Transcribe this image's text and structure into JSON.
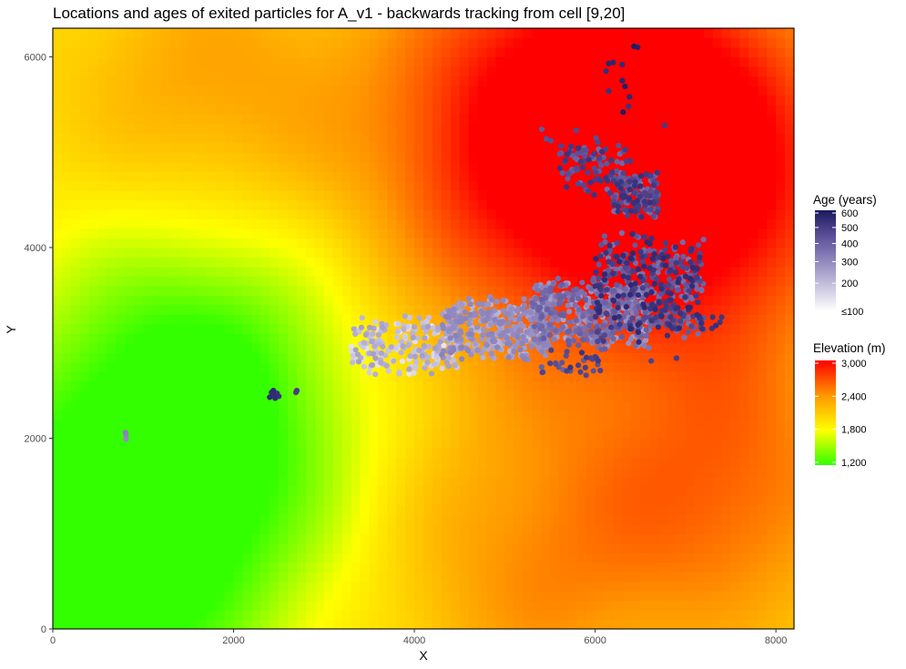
{
  "chart_data": {
    "type": "heatmap",
    "title": "Locations and ages of exited particles for A_v1 - backwards tracking from cell [9,20]",
    "xlabel": "X",
    "ylabel": "Y",
    "xlim": [
      0,
      8200
    ],
    "ylim": [
      0,
      6300
    ],
    "x_ticks": [
      0,
      2000,
      4000,
      6000,
      8000
    ],
    "x_tick_labels": [
      "0",
      "2000",
      "4000",
      "6000",
      "8000"
    ],
    "y_ticks": [
      0,
      2000,
      4000,
      6000
    ],
    "y_tick_labels": [
      "0",
      "2000",
      "4000",
      "6000"
    ],
    "grid": false,
    "elevation_raster": {
      "description": "Elevation surface rendered as colored cells",
      "x_range": [
        0,
        8200
      ],
      "y_range": [
        0,
        6300
      ],
      "value_range_m": [
        1150,
        3050
      ],
      "colors": [
        "#33ff00",
        "#ffff00",
        "#ff9900",
        "#ff0000"
      ],
      "peaks": [
        {
          "x": 6300,
          "y": 5700,
          "elev": 2850,
          "spread": 1500
        },
        {
          "x": 7300,
          "y": 4500,
          "elev": 2700,
          "spread": 1200
        },
        {
          "x": 5200,
          "y": 4800,
          "elev": 2600,
          "spread": 1400
        },
        {
          "x": 7600,
          "y": 1500,
          "elev": 2500,
          "spread": 1100
        },
        {
          "x": 5400,
          "y": 700,
          "elev": 2450,
          "spread": 1300
        },
        {
          "x": 1700,
          "y": 5600,
          "elev": 2350,
          "spread": 1100
        },
        {
          "x": 1500,
          "y": 1700,
          "elev": 1300,
          "spread": 1400
        },
        {
          "x": 300,
          "y": 500,
          "elev": 1250,
          "spread": 1300
        },
        {
          "x": 1700,
          "y": 3000,
          "elev": 1500,
          "spread": 1200
        }
      ]
    },
    "particle_clusters": [
      {
        "x_range": [
          3300,
          4500
        ],
        "y_range": [
          2650,
          3300
        ],
        "age_range": [
          110,
          180
        ],
        "count": 220
      },
      {
        "x_range": [
          4300,
          5500
        ],
        "y_range": [
          2800,
          3500
        ],
        "age_range": [
          150,
          230
        ],
        "count": 380
      },
      {
        "x_range": [
          5300,
          6600
        ],
        "y_range": [
          2900,
          3700
        ],
        "age_range": [
          170,
          320
        ],
        "count": 420
      },
      {
        "x_range": [
          6000,
          7200
        ],
        "y_range": [
          3000,
          4200
        ],
        "age_range": [
          250,
          520
        ],
        "count": 360
      },
      {
        "x_range": [
          6200,
          6700
        ],
        "y_range": [
          4300,
          4800
        ],
        "age_range": [
          250,
          480
        ],
        "count": 140
      },
      {
        "x_range": [
          5600,
          6400
        ],
        "y_range": [
          4500,
          5100
        ],
        "age_range": [
          280,
          460
        ],
        "count": 90
      },
      {
        "x_range": [
          6600,
          7400
        ],
        "y_range": [
          3100,
          3400
        ],
        "age_range": [
          300,
          500
        ],
        "count": 40
      },
      {
        "x_range": [
          5400,
          6100
        ],
        "y_range": [
          2650,
          2950
        ],
        "age_range": [
          300,
          460
        ],
        "count": 30
      }
    ],
    "particles_extra": [
      {
        "x": 6430,
        "y": 6110,
        "age": 600
      },
      {
        "x": 6470,
        "y": 6100,
        "age": 560
      },
      {
        "x": 6150,
        "y": 5930,
        "age": 540
      },
      {
        "x": 6200,
        "y": 5940,
        "age": 520
      },
      {
        "x": 6300,
        "y": 5920,
        "age": 500
      },
      {
        "x": 6120,
        "y": 5850,
        "age": 480
      },
      {
        "x": 6300,
        "y": 5750,
        "age": 540
      },
      {
        "x": 6330,
        "y": 5690,
        "age": 580
      },
      {
        "x": 6150,
        "y": 5640,
        "age": 460
      },
      {
        "x": 6380,
        "y": 5580,
        "age": 520
      },
      {
        "x": 6310,
        "y": 5420,
        "age": 600
      },
      {
        "x": 6370,
        "y": 5480,
        "age": 450
      },
      {
        "x": 6770,
        "y": 5280,
        "age": 420
      },
      {
        "x": 5410,
        "y": 5240,
        "age": 330
      },
      {
        "x": 5790,
        "y": 5230,
        "age": 380
      },
      {
        "x": 6010,
        "y": 5150,
        "age": 360
      },
      {
        "x": 6030,
        "y": 5100,
        "age": 390
      },
      {
        "x": 5460,
        "y": 5140,
        "age": 350
      },
      {
        "x": 5510,
        "y": 5120,
        "age": 360
      },
      {
        "x": 2420,
        "y": 2480,
        "age": 480
      },
      {
        "x": 2450,
        "y": 2450,
        "age": 500
      },
      {
        "x": 2480,
        "y": 2470,
        "age": 470
      },
      {
        "x": 2400,
        "y": 2430,
        "age": 520
      },
      {
        "x": 2460,
        "y": 2420,
        "age": 490
      },
      {
        "x": 2500,
        "y": 2440,
        "age": 460
      },
      {
        "x": 2440,
        "y": 2500,
        "age": 510
      },
      {
        "x": 2690,
        "y": 2480,
        "age": 400
      },
      {
        "x": 2700,
        "y": 2500,
        "age": 420
      },
      {
        "x": 810,
        "y": 2030,
        "age": 220
      },
      {
        "x": 810,
        "y": 1990,
        "age": 210
      },
      {
        "x": 805,
        "y": 2060,
        "age": 230
      },
      {
        "x": 7150,
        "y": 3280,
        "age": 480
      },
      {
        "x": 7300,
        "y": 3270,
        "age": 460
      },
      {
        "x": 7400,
        "y": 3270,
        "age": 440
      },
      {
        "x": 6900,
        "y": 2840,
        "age": 420
      },
      {
        "x": 6620,
        "y": 2810,
        "age": 400
      },
      {
        "x": 5900,
        "y": 2660,
        "age": 380
      }
    ],
    "legends": [
      {
        "title": "Age (years)",
        "type": "colorbar",
        "breaks": [
          600,
          500,
          400,
          300,
          200,
          100
        ],
        "labels": [
          "600",
          "500",
          "400",
          "300",
          "200",
          "≤100"
        ],
        "range": [
          100,
          620
        ],
        "colors": [
          "#ffffff",
          "#8a80b8",
          "#1a1a5e"
        ]
      },
      {
        "title": "Elevation (m)",
        "type": "colorbar",
        "breaks": [
          3000,
          2400,
          1800,
          1200
        ],
        "labels": [
          "3,000",
          "2,400",
          "1,800",
          "1,200"
        ],
        "range": [
          1150,
          3050
        ],
        "colors": [
          "#33ff00",
          "#ffff00",
          "#ff9900",
          "#ff0000"
        ]
      }
    ]
  }
}
